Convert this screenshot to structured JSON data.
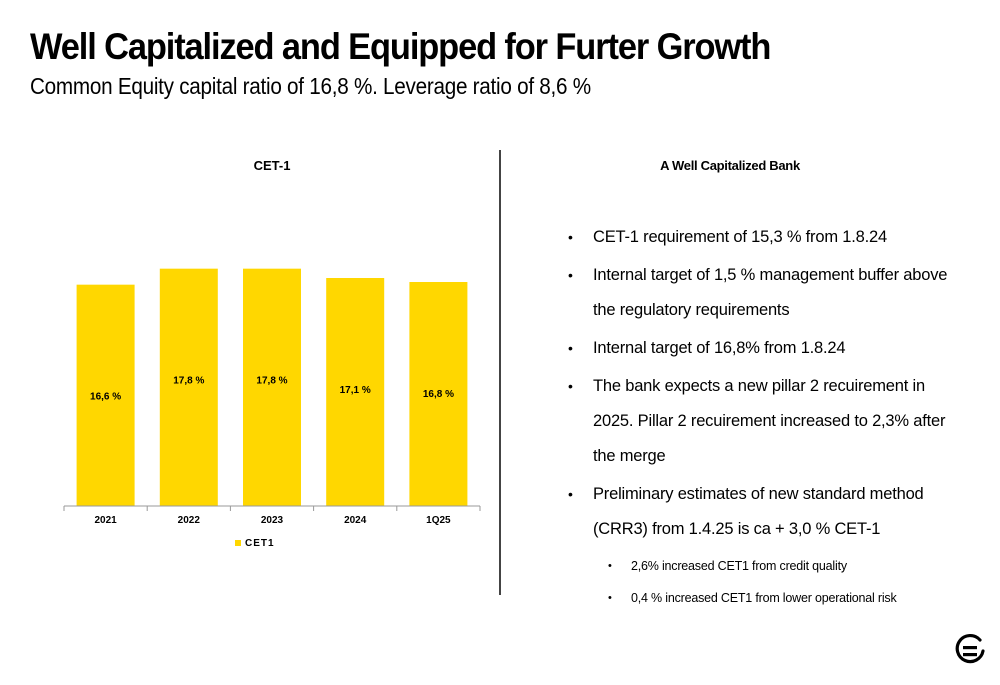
{
  "title": "Well Capitalized and Equipped for Furter Growth",
  "subtitle": "Common Equity capital ratio of 16,8 %. Leverage ratio of 8,6 %",
  "chart_data": {
    "type": "bar",
    "title": "CET-1",
    "categories": [
      "2021",
      "2022",
      "2023",
      "2024",
      "1Q25"
    ],
    "series": [
      {
        "name": "CET1",
        "values": [
          16.6,
          17.8,
          17.8,
          17.1,
          16.8
        ],
        "labels": [
          "16,6 %",
          "17,8 %",
          "17,8 %",
          "17,1 %",
          "16,8 %"
        ],
        "color": "#FFD700"
      }
    ],
    "ylim": [
      0,
      18
    ],
    "grid": false,
    "legend": "bottom"
  },
  "panel": {
    "title": "A Well Capitalized Bank",
    "bullets": [
      {
        "text": "CET-1 requirement of 15,3 % from 1.8.24",
        "level": 1
      },
      {
        "text": "Internal target of 1,5 % management buffer above the regulatory requirements",
        "level": 1
      },
      {
        "text": "Internal target of 16,8% from 1.8.24",
        "level": 1
      },
      {
        "text": "The bank expects a new pillar 2 recuirement in 2025. Pillar 2 recuirement increased to 2,3% after the merge",
        "level": 1
      },
      {
        "text": "Preliminary estimates of new standard method (CRR3) from 1.4.25 is ca + 3,0 % CET-1",
        "level": 1
      },
      {
        "text": "2,6% increased CET1 from credit quality",
        "level": 2
      },
      {
        "text": "0,4 % increased CET1 from lower operational risk",
        "level": 2
      }
    ]
  },
  "colors": {
    "bar": "#FFD700",
    "axis": "#999999",
    "divider": "#444444"
  },
  "logo_icon": "equals-circle-icon"
}
